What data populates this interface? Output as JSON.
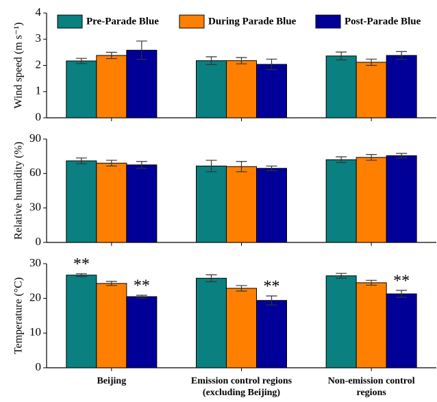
{
  "chart_data": [
    {
      "type": "bar",
      "ylabel": "Wind speed (m s⁻¹)",
      "ylim": [
        0,
        4
      ],
      "yticks": [
        0,
        1,
        2,
        3,
        4
      ],
      "series": [
        {
          "name": "Pre-Parade Blue",
          "color": "#0a8080",
          "values": [
            2.17,
            2.18,
            2.36
          ],
          "errors": [
            0.1,
            0.15,
            0.15
          ]
        },
        {
          "name": "During Parade Blue",
          "color": "#ff8000",
          "values": [
            2.38,
            2.18,
            2.12
          ],
          "errors": [
            0.12,
            0.12,
            0.12
          ]
        },
        {
          "name": "Post-Parade Blue",
          "color": "#000099",
          "values": [
            2.58,
            2.04,
            2.38
          ],
          "errors": [
            0.35,
            0.2,
            0.15
          ]
        }
      ]
    },
    {
      "type": "bar",
      "ylabel": "Relative humidity (%)",
      "ylim": [
        0,
        90
      ],
      "yticks": [
        0,
        30,
        60,
        90
      ],
      "series": [
        {
          "color": "#0a8080",
          "values": [
            71,
            66.5,
            72
          ],
          "errors": [
            2.5,
            5,
            2.5
          ]
        },
        {
          "color": "#ff8000",
          "values": [
            69,
            66,
            74
          ],
          "errors": [
            2.5,
            4.5,
            2.5
          ]
        },
        {
          "color": "#000099",
          "values": [
            67.5,
            64.5,
            75.5
          ],
          "errors": [
            3,
            2,
            2
          ]
        }
      ]
    },
    {
      "type": "bar",
      "ylabel": "Temperature (°C)",
      "ylim": [
        0,
        30
      ],
      "yticks": [
        0,
        10,
        20,
        30
      ],
      "categories": [
        "Beijing",
        "Emission control regions\n(excluding Beijing)",
        "Non-emission control\nregions"
      ],
      "series": [
        {
          "color": "#0a8080",
          "values": [
            26.7,
            25.8,
            26.5
          ],
          "errors": [
            0.4,
            1,
            0.7
          ]
        },
        {
          "color": "#ff8000",
          "values": [
            24.3,
            22.9,
            24.5
          ],
          "errors": [
            0.6,
            0.8,
            0.7
          ]
        },
        {
          "color": "#000099",
          "values": [
            20.5,
            19.4,
            21.3
          ],
          "errors": [
            0.4,
            1.3,
            1
          ]
        }
      ],
      "annotations": [
        {
          "text": "**",
          "series": 0,
          "category": 0
        },
        {
          "text": "**",
          "series": 2,
          "category": 0
        },
        {
          "text": "**",
          "series": 2,
          "category": 1
        },
        {
          "text": "**",
          "series": 2,
          "category": 2
        }
      ]
    }
  ]
}
